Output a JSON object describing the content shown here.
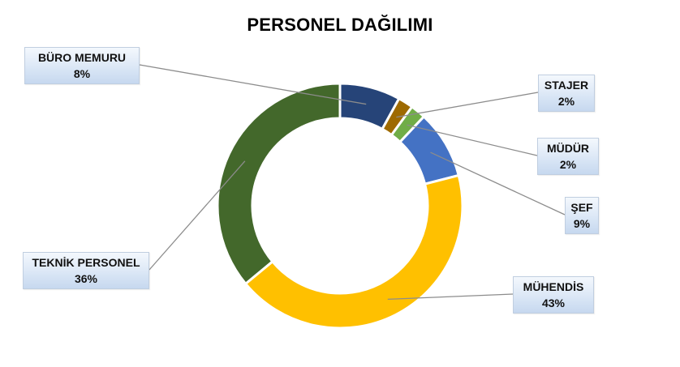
{
  "chart_data": {
    "type": "pie",
    "title": "PERSONEL DAĞILIMI",
    "slices": [
      {
        "label": "BÜRO MEMURU",
        "percent_label": "8%",
        "value": 8,
        "color": "#264478"
      },
      {
        "label": "STAJER",
        "percent_label": "2%",
        "value": 2,
        "color": "#9E6A00"
      },
      {
        "label": "MÜDÜR",
        "percent_label": "2%",
        "value": 2,
        "color": "#70AD47"
      },
      {
        "label": "ŞEF",
        "percent_label": "9%",
        "value": 9,
        "color": "#4472C4"
      },
      {
        "label": "MÜHENDİS",
        "percent_label": "43%",
        "value": 43,
        "color": "#FFC000"
      },
      {
        "label": "TEKNİK PERSONEL",
        "percent_label": "36%",
        "value": 36,
        "color": "#43682B"
      }
    ]
  }
}
